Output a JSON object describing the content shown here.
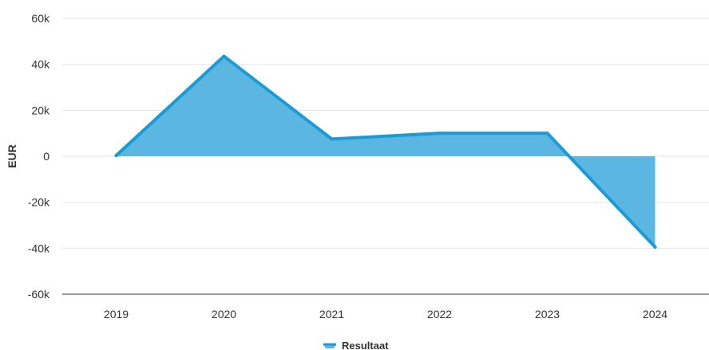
{
  "chart_data": {
    "type": "area",
    "x": [
      "2019",
      "2020",
      "2021",
      "2022",
      "2023",
      "2024"
    ],
    "series": [
      {
        "name": "Resultaat",
        "values": [
          300,
          43500,
          7500,
          10000,
          10000,
          -39500
        ]
      }
    ],
    "ylabel": "EUR",
    "ylim": [
      -60000,
      60000
    ],
    "yticks": [
      -60000,
      -40000,
      -20000,
      0,
      20000,
      40000,
      60000
    ],
    "ytick_labels": [
      "-60k",
      "-40k",
      "-20k",
      "0",
      "20k",
      "40k",
      "60k"
    ],
    "grid": true,
    "legend": "bottom-center",
    "colors": {
      "line": "#1a9bd7",
      "fill": "#5bb6e2",
      "grid": "#e6e6e6",
      "axis": "#333333"
    }
  }
}
